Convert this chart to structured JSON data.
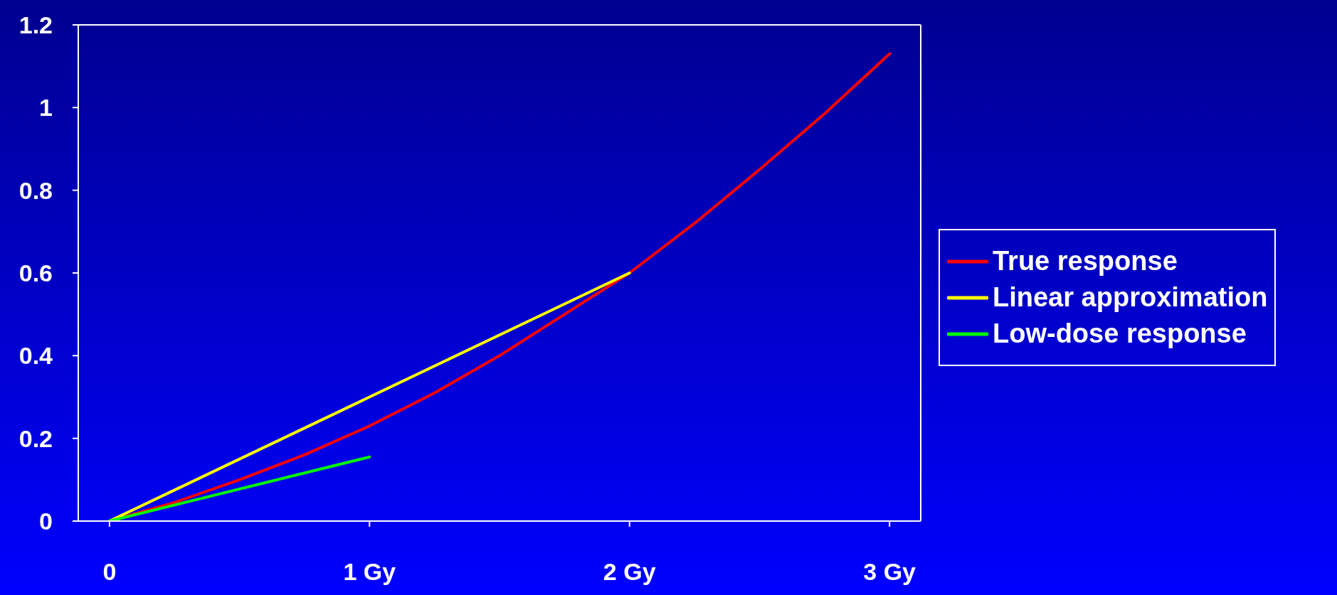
{
  "chart_data": {
    "type": "line",
    "xlim": [
      -0.12,
      3.12
    ],
    "xticks": [
      0,
      {
        "value": 1,
        "label": "1 Gy"
      },
      {
        "value": 2,
        "label": "2 Gy"
      },
      {
        "value": 3,
        "label": "3 Gy"
      }
    ],
    "ylim": [
      0,
      1.2
    ],
    "yticks": [
      0,
      0.2,
      0.4,
      0.6,
      0.8,
      1,
      1.2
    ],
    "grid": false,
    "legend": "right",
    "marker": "none",
    "line_style": "solid",
    "series": [
      {
        "name": "True response",
        "color": "#ff0000",
        "x": [
          0,
          0.25,
          0.5,
          0.75,
          1,
          1.25,
          1.5,
          1.75,
          2,
          2.25,
          2.5,
          2.75,
          3
        ],
        "values": [
          0,
          0.045,
          0.1,
          0.16,
          0.23,
          0.31,
          0.4,
          0.5,
          0.6,
          0.72,
          0.85,
          0.985,
          1.13
        ]
      },
      {
        "name": "Linear approximation",
        "color": "#ffff00",
        "x": [
          0,
          2
        ],
        "values": [
          0,
          0.6
        ]
      },
      {
        "name": "Low-dose response",
        "color": "#00ff00",
        "x": [
          0,
          1
        ],
        "values": [
          0,
          0.155
        ]
      }
    ]
  }
}
